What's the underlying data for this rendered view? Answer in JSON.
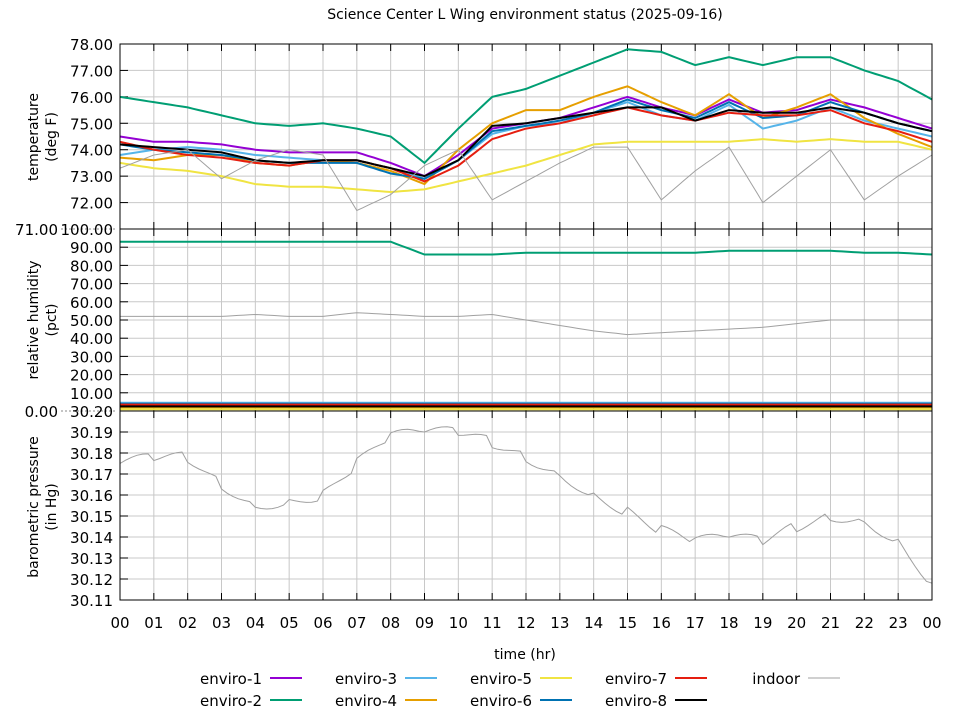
{
  "chart_data": [
    {
      "type": "line",
      "title": "Science Center L Wing environment status (2025-09-16)",
      "ylabel": "temperature (deg F)",
      "xlabel": "time (hr)",
      "ylim": [
        71,
        78
      ],
      "yticks": [
        "78.00",
        "77.00",
        "76.00",
        "75.00",
        "74.00",
        "73.00",
        "72.00",
        "71.00"
      ],
      "x": [
        0,
        1,
        2,
        3,
        4,
        5,
        6,
        7,
        8,
        9,
        10,
        11,
        12,
        13,
        14,
        15,
        16,
        17,
        18,
        19,
        20,
        21,
        22,
        23,
        24
      ],
      "series": [
        {
          "name": "enviro-1",
          "color": "#9400d3",
          "values": [
            74.5,
            74.3,
            74.3,
            74.2,
            74.0,
            73.9,
            73.9,
            73.9,
            73.5,
            73.0,
            73.8,
            74.8,
            75.0,
            75.2,
            75.6,
            76.0,
            75.6,
            75.3,
            75.9,
            75.4,
            75.5,
            75.9,
            75.6,
            75.2,
            74.8
          ]
        },
        {
          "name": "enviro-2",
          "color": "#009e73",
          "values": [
            76.0,
            75.8,
            75.6,
            75.3,
            75.0,
            74.9,
            75.0,
            74.8,
            74.5,
            73.5,
            74.8,
            76.0,
            76.3,
            76.8,
            77.3,
            77.8,
            77.7,
            77.2,
            77.5,
            77.2,
            77.5,
            77.5,
            77.0,
            76.6,
            75.9
          ]
        },
        {
          "name": "enviro-3",
          "color": "#56b4e9",
          "values": [
            73.8,
            74.0,
            74.1,
            74.0,
            73.8,
            73.7,
            73.6,
            73.6,
            73.3,
            72.9,
            73.6,
            74.6,
            74.9,
            75.0,
            75.4,
            75.8,
            75.3,
            75.1,
            75.7,
            74.8,
            75.1,
            75.6,
            75.1,
            74.8,
            74.5
          ]
        },
        {
          "name": "enviro-4",
          "color": "#e69f00",
          "values": [
            73.7,
            73.6,
            73.8,
            73.8,
            73.5,
            73.4,
            73.6,
            73.5,
            73.2,
            72.7,
            74.0,
            75.0,
            75.5,
            75.5,
            76.0,
            76.4,
            75.8,
            75.3,
            76.1,
            75.2,
            75.6,
            76.1,
            75.2,
            74.6,
            74.1
          ]
        },
        {
          "name": "enviro-5",
          "color": "#f0e442",
          "values": [
            73.5,
            73.3,
            73.2,
            73.0,
            72.7,
            72.6,
            72.6,
            72.5,
            72.4,
            72.5,
            72.8,
            73.1,
            73.4,
            73.8,
            74.2,
            74.3,
            74.3,
            74.3,
            74.3,
            74.4,
            74.3,
            74.4,
            74.3,
            74.3,
            74.0
          ]
        },
        {
          "name": "enviro-6",
          "color": "#0072b2",
          "values": [
            74.2,
            74.0,
            73.9,
            73.8,
            73.6,
            73.5,
            73.5,
            73.5,
            73.1,
            72.9,
            73.6,
            74.7,
            74.9,
            75.1,
            75.4,
            75.9,
            75.5,
            75.2,
            75.8,
            75.2,
            75.3,
            75.8,
            75.4,
            75.0,
            74.7
          ]
        },
        {
          "name": "enviro-7",
          "color": "#e51e10",
          "values": [
            74.3,
            74.0,
            73.8,
            73.7,
            73.5,
            73.4,
            73.6,
            73.6,
            73.3,
            72.8,
            73.4,
            74.4,
            74.8,
            75.0,
            75.3,
            75.6,
            75.3,
            75.1,
            75.4,
            75.3,
            75.3,
            75.5,
            75.0,
            74.7,
            74.3
          ]
        },
        {
          "name": "enviro-8",
          "color": "#000000",
          "values": [
            74.2,
            74.1,
            74.0,
            73.9,
            73.6,
            73.5,
            73.6,
            73.6,
            73.3,
            73.0,
            73.6,
            74.9,
            75.0,
            75.2,
            75.4,
            75.6,
            75.6,
            75.1,
            75.5,
            75.4,
            75.4,
            75.6,
            75.4,
            75.0,
            74.7
          ]
        },
        {
          "name": "indoor",
          "color": "#a0a0a0",
          "values": [
            73.3,
            73.8,
            74.0,
            72.9,
            73.6,
            74.0,
            73.8,
            71.7,
            72.3,
            73.4,
            74.0,
            72.1,
            72.8,
            73.5,
            74.1,
            74.1,
            72.1,
            73.2,
            74.1,
            72.0,
            73.0,
            74.0,
            72.1,
            73.0,
            73.8
          ]
        }
      ]
    },
    {
      "type": "line",
      "ylabel": "relative humidity (pct)",
      "ylim": [
        0,
        100
      ],
      "yticks": [
        "100.00",
        "90.00",
        "80.00",
        "70.00",
        "60.00",
        "50.00",
        "40.00",
        "30.00",
        "20.00",
        "10.00",
        "0.00"
      ],
      "x": [
        0,
        1,
        2,
        3,
        4,
        5,
        6,
        7,
        8,
        9,
        10,
        11,
        12,
        13,
        14,
        15,
        16,
        17,
        18,
        19,
        20,
        21,
        22,
        23,
        24
      ],
      "series": [
        {
          "name": "enviro-1",
          "color": "#9400d3",
          "values": [
            3,
            3,
            3,
            3,
            3,
            3,
            3,
            3,
            3,
            3,
            3,
            3,
            3,
            3,
            3,
            3,
            3,
            3,
            3,
            3,
            3,
            3,
            3,
            3,
            3
          ]
        },
        {
          "name": "enviro-2",
          "color": "#009e73",
          "values": [
            93,
            93,
            93,
            93,
            93,
            93,
            93,
            93,
            93,
            86,
            86,
            86,
            87,
            87,
            87,
            87,
            87,
            87,
            88,
            88,
            88,
            88,
            87,
            87,
            86
          ]
        },
        {
          "name": "enviro-3",
          "color": "#56b4e9",
          "values": [
            4.5,
            4.5,
            4.5,
            4.5,
            4.5,
            4.5,
            4.5,
            4.5,
            4.5,
            4.5,
            4.5,
            4.5,
            4.5,
            4.5,
            4.5,
            4.5,
            4.5,
            4.5,
            4.5,
            4.5,
            4.5,
            4.5,
            4.5,
            4.5,
            4.5
          ]
        },
        {
          "name": "enviro-4",
          "color": "#e69f00",
          "values": [
            2,
            2,
            2,
            2,
            2,
            2,
            2,
            2,
            2,
            2,
            2,
            2,
            2,
            2,
            2,
            2,
            2,
            2,
            2,
            2,
            2,
            2,
            2,
            2,
            2
          ]
        },
        {
          "name": "enviro-5",
          "color": "#f0e442",
          "values": [
            1,
            1,
            1,
            1,
            1,
            1,
            1,
            1,
            1,
            1,
            1,
            1,
            1,
            1,
            1,
            1,
            1,
            1,
            1,
            1,
            1,
            1,
            1,
            1,
            1
          ]
        },
        {
          "name": "enviro-6",
          "color": "#0072b2",
          "values": [
            4,
            4,
            4,
            4,
            4,
            4,
            4,
            4,
            4,
            4,
            4,
            4,
            4,
            4,
            4,
            4,
            4,
            4,
            4,
            4,
            4,
            4,
            4,
            4,
            4
          ]
        },
        {
          "name": "enviro-7",
          "color": "#e51e10",
          "values": [
            3.5,
            3.5,
            3.5,
            3.5,
            3.5,
            3.5,
            3.5,
            3.5,
            3.5,
            3.5,
            3.5,
            3.5,
            3.5,
            3.5,
            3.5,
            3.5,
            3.5,
            3.5,
            3.5,
            3.5,
            3.5,
            3.5,
            3.5,
            3.5,
            3.5
          ]
        },
        {
          "name": "enviro-8",
          "color": "#000000",
          "values": [
            2.5,
            2.5,
            2.5,
            2.5,
            2.5,
            2.5,
            2.5,
            2.5,
            2.5,
            2.5,
            2.5,
            2.5,
            2.5,
            2.5,
            2.5,
            2.5,
            2.5,
            2.5,
            2.5,
            2.5,
            2.5,
            2.5,
            2.5,
            2.5,
            2.5
          ]
        },
        {
          "name": "indoor",
          "color": "#a0a0a0",
          "values": [
            52,
            52,
            52,
            52,
            53,
            52,
            52,
            54,
            53,
            52,
            52,
            53,
            50,
            47,
            44,
            42,
            43,
            44,
            45,
            46,
            48,
            50,
            50,
            50,
            50
          ]
        }
      ]
    },
    {
      "type": "line",
      "ylabel": "barometric pressure (in Hg)",
      "ylim": [
        30.11,
        30.2
      ],
      "yticks": [
        "30.20",
        "30.19",
        "30.18",
        "30.17",
        "30.16",
        "30.15",
        "30.14",
        "30.13",
        "30.12",
        "30.11"
      ],
      "x": [
        0,
        1,
        2,
        3,
        4,
        5,
        6,
        7,
        8,
        9,
        10,
        11,
        12,
        13,
        14,
        15,
        16,
        17,
        18,
        19,
        20,
        21,
        22,
        23,
        24
      ],
      "series": [
        {
          "name": "indoor",
          "color": "#a0a0a0",
          "values": [
            30.175,
            30.178,
            30.178,
            30.165,
            30.155,
            30.157,
            30.16,
            30.175,
            30.188,
            30.19,
            30.19,
            30.185,
            30.178,
            30.17,
            30.16,
            30.152,
            30.143,
            30.138,
            30.14,
            30.138,
            30.145,
            30.15,
            30.148,
            30.138,
            30.118
          ]
        }
      ]
    }
  ],
  "xticks": [
    "00",
    "01",
    "02",
    "03",
    "04",
    "05",
    "06",
    "07",
    "08",
    "09",
    "10",
    "11",
    "12",
    "13",
    "14",
    "15",
    "16",
    "17",
    "18",
    "19",
    "20",
    "21",
    "22",
    "23",
    "00"
  ],
  "legend": [
    "enviro-1",
    "enviro-2",
    "enviro-3",
    "enviro-4",
    "enviro-5",
    "enviro-6",
    "enviro-7",
    "enviro-8",
    "indoor"
  ],
  "labels": {
    "title": "Science Center L Wing environment status (2025-09-16)",
    "xlabel": "time (hr)",
    "temp_y1": "temperature",
    "temp_y2": "(deg F)",
    "hum_y1": "relative humidity",
    "hum_y2": "(pct)",
    "pres_y1": "barometric pressure",
    "pres_y2": "(in Hg)"
  }
}
